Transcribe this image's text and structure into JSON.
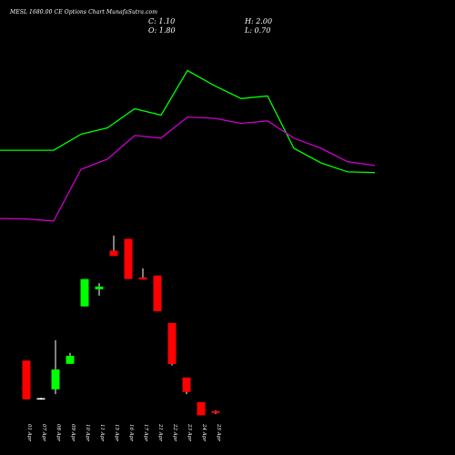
{
  "header": {
    "title": "MESL 1680.00  CE Options  Chart MunafaSutra.com",
    "close": "C: 1.10",
    "open": "O: 1.80",
    "high": "H: 2.00",
    "low": "L: 0.70"
  },
  "chart_data": {
    "type": "candlestick",
    "categories": [
      "01 Apr",
      "07 Apr",
      "08 Apr",
      "09 Apr",
      "10 Apr",
      "11 Apr",
      "15 Apr",
      "16 Apr",
      "17 Apr",
      "21 Apr",
      "22 Apr",
      "23 Apr",
      "24 Apr",
      "25 Apr"
    ],
    "candles": [
      {
        "open": 20.6,
        "high": 20.6,
        "low": 6.2,
        "close": 6.2
      },
      {
        "open": 6.4,
        "high": 6.8,
        "low": 6.0,
        "close": 6.6
      },
      {
        "open": 9.9,
        "high": 28.2,
        "low": 8.1,
        "close": 17.3
      },
      {
        "open": 19.4,
        "high": 23.5,
        "low": 19.4,
        "close": 22.4
      },
      {
        "open": 40.8,
        "high": 51.0,
        "low": 40.8,
        "close": 51.0
      },
      {
        "open": 47.2,
        "high": 49.5,
        "low": 44.8,
        "close": 48.2
      },
      {
        "open": 61.6,
        "high": 67.2,
        "low": 59.6,
        "close": 59.6
      },
      {
        "open": 66.0,
        "high": 66.0,
        "low": 51.0,
        "close": 51.0
      },
      {
        "open": 51.6,
        "high": 55.0,
        "low": 50.8,
        "close": 50.8
      },
      {
        "open": 52.3,
        "high": 52.3,
        "low": 39.0,
        "close": 39.0
      },
      {
        "open": 34.6,
        "high": 34.6,
        "low": 18.8,
        "close": 19.3
      },
      {
        "open": 14.3,
        "high": 14.3,
        "low": 8.1,
        "close": 8.9
      },
      {
        "open": 5.1,
        "high": 5.1,
        "low": 0.2,
        "close": 0.2
      },
      {
        "open": 1.8,
        "high": 2.0,
        "low": 0.7,
        "close": 1.1
      }
    ],
    "overlays": [
      {
        "color": "#00ff00",
        "values": [
          240,
          240,
          240,
          265,
          275,
          305,
          295,
          365,
          341,
          321,
          325,
          243,
          220,
          206,
          205
        ]
      },
      {
        "color": "#cc00cc",
        "values": [
          133,
          132,
          129,
          210,
          226,
          263,
          259,
          292,
          290,
          282,
          286,
          259,
          243,
          222,
          216
        ]
      }
    ],
    "colors": {
      "up": "#00ff00",
      "down": "#ff0000",
      "flat": "#ffffff",
      "wick": "#ffffff"
    }
  }
}
